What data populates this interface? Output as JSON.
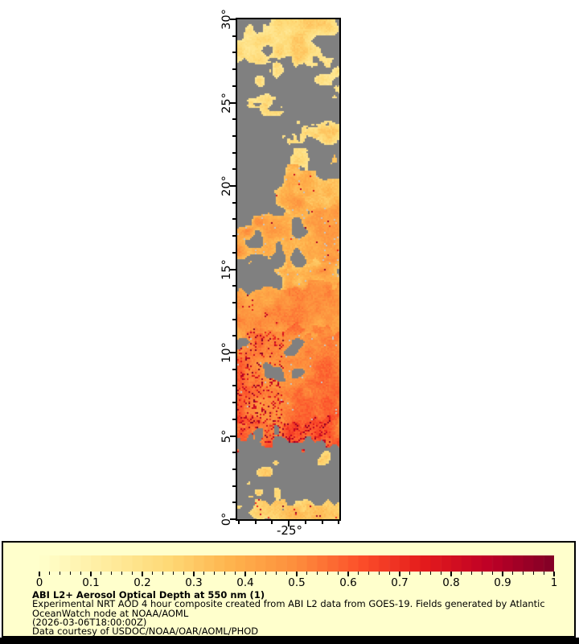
{
  "window": {
    "background": "#ffffff",
    "bottom_bar_color": "#000000"
  },
  "map": {
    "y_axis": {
      "tick_labels": [
        "0°",
        "5°",
        "10°",
        "15°",
        "20°",
        "25°",
        "30°"
      ],
      "lat_min": 0,
      "lat_max": 30,
      "major_step_deg": 5,
      "minor_step_deg": 1
    },
    "x_axis": {
      "tick_label": "-25°",
      "lon_min": -28.1,
      "lon_max": -21.9,
      "minor_step_deg": 1,
      "major_lon": -25
    },
    "nodata_color": "#808080",
    "cloud_color": "#c6c6c6",
    "frame_color": "#000000"
  },
  "colorbar": {
    "min": 0,
    "max": 1,
    "segments": 50,
    "major_step": 0.1,
    "minor_step": 0.02,
    "tick_labels": [
      "0",
      "0.1",
      "0.2",
      "0.3",
      "0.4",
      "0.5",
      "0.6",
      "0.7",
      "0.8",
      "0.9",
      "1"
    ],
    "colormap_name": "YlOrRd",
    "colormap_anchors": [
      "#ffffcc",
      "#ffeda0",
      "#fed976",
      "#feb24c",
      "#fd8d3c",
      "#fc4e2a",
      "#e31a1c",
      "#bd0026",
      "#800026"
    ]
  },
  "legend": {
    "background": "#ffffcc",
    "border_color": "#000000",
    "text_color": "#000000",
    "title": "ABI L2+ Aerosol Optical Depth at 550 nm (1)",
    "lines": [
      "Experimental NRT AOD 4 hour composite created from ABI L2 data from GOES-19. Fields generated by Atlantic",
      "OceanWatch node at NOAA/AOML",
      "(2026-03-06T18:00:00Z)",
      "Data courtesy of USDOC/NOAA/OAR/AOML/PHOD"
    ]
  },
  "chart_data": {
    "type": "heatmap",
    "title": "ABI L2+ Aerosol Optical Depth at 550 nm (1)",
    "variable": "Aerosol Optical Depth (AOD) at 550 nm",
    "source": "GOES-19 ABI L2, 4 hour NRT composite",
    "x_range_deg_lon": [
      -28.1,
      -21.9
    ],
    "y_range_deg_lat": [
      0,
      30
    ],
    "x_tick_labels_shown": [
      "-25°"
    ],
    "y_tick_labels_shown": [
      "0°",
      "5°",
      "10°",
      "15°",
      "20°",
      "25°",
      "30°"
    ],
    "colorbar_range": [
      0,
      1
    ],
    "colorbar_tick_labels": [
      "0",
      "0.1",
      "0.2",
      "0.3",
      "0.4",
      "0.5",
      "0.6",
      "0.7",
      "0.8",
      "0.9",
      "1"
    ],
    "colormap_anchors": [
      "#ffffcc",
      "#ffeda0",
      "#fed976",
      "#feb24c",
      "#fd8d3c",
      "#fc4e2a",
      "#e31a1c",
      "#bd0026",
      "#800026"
    ],
    "nodata_color": "#808080",
    "regions": [
      {
        "lat_range": [
          27.4,
          30.0
        ],
        "coverage_west_east": [
          0.52,
          0.45
        ],
        "aod_range": [
          0.12,
          0.3
        ],
        "red_speckle_prob": 0,
        "red_speckle_x_frac": 0,
        "cloud_prob": 0
      },
      {
        "lat_range": [
          25.9,
          27.4
        ],
        "coverage_west_east": [
          0.3,
          0.28
        ],
        "aod_range": [
          0.12,
          0.28
        ],
        "red_speckle_prob": 0,
        "red_speckle_x_frac": 0,
        "cloud_prob": 0
      },
      {
        "lat_range": [
          24.9,
          25.9
        ],
        "coverage_west_east": [
          0.32,
          0.26
        ],
        "aod_range": [
          0.14,
          0.28
        ],
        "red_speckle_prob": 0,
        "red_speckle_x_frac": 0,
        "cloud_prob": 0
      },
      {
        "lat_range": [
          23.2,
          24.9
        ],
        "coverage_west_east": [
          0.62,
          0.55
        ],
        "aod_range": [
          0.15,
          0.33
        ],
        "red_speckle_prob": 0,
        "red_speckle_x_frac": 0,
        "cloud_prob": 0
      },
      {
        "lat_range": [
          21.2,
          23.2
        ],
        "coverage_west_east": [
          0.38,
          0.3
        ],
        "aod_range": [
          0.15,
          0.3
        ],
        "red_speckle_prob": 0,
        "red_speckle_x_frac": 0,
        "cloud_prob": 0
      },
      {
        "lat_range": [
          18.8,
          21.2
        ],
        "coverage_west_east": [
          0.25,
          0.8
        ],
        "aod_range": [
          0.25,
          0.47
        ],
        "red_speckle_prob": 0.01,
        "red_speckle_x_frac": 1.0,
        "cloud_prob": 0.01
      },
      {
        "lat_range": [
          15.2,
          18.8
        ],
        "coverage_west_east": [
          0.22,
          0.92
        ],
        "aod_range": [
          0.3,
          0.5
        ],
        "red_speckle_prob": 0.01,
        "red_speckle_x_frac": 1.0,
        "cloud_prob": 0.02
      },
      {
        "lat_range": [
          14.0,
          15.2
        ],
        "coverage_west_east": [
          0.5,
          0.62
        ],
        "aod_range": [
          0.25,
          0.45
        ],
        "red_speckle_prob": 0,
        "red_speckle_x_frac": 0,
        "cloud_prob": 0.01
      },
      {
        "lat_range": [
          11.3,
          14.0
        ],
        "coverage_west_east": [
          0.68,
          0.85
        ],
        "aod_range": [
          0.35,
          0.52
        ],
        "red_speckle_prob": 0.02,
        "red_speckle_x_frac": 0.35,
        "cloud_prob": 0
      },
      {
        "lat_range": [
          5.9,
          11.3
        ],
        "coverage_west_east": [
          0.6,
          0.98
        ],
        "aod_range": [
          0.42,
          0.6
        ],
        "red_speckle_prob": 0.16,
        "red_speckle_x_frac": 0.45,
        "cloud_prob": 0.008
      },
      {
        "lat_range": [
          4.6,
          5.9
        ],
        "coverage_west_east": [
          0.75,
          0.85
        ],
        "aod_range": [
          0.45,
          0.68
        ],
        "red_speckle_prob": 0.22,
        "red_speckle_x_frac": 0.9,
        "cloud_prob": 0
      },
      {
        "lat_range": [
          2.1,
          4.6
        ],
        "coverage_west_east": [
          0.06,
          0.1
        ],
        "aod_range": [
          0.18,
          0.3
        ],
        "red_speckle_prob": 0,
        "red_speckle_x_frac": 0,
        "cloud_prob": 0
      },
      {
        "lat_range": [
          1.0,
          2.1
        ],
        "coverage_west_east": [
          0.15,
          0.3
        ],
        "aod_range": [
          0.18,
          0.32
        ],
        "red_speckle_prob": 0,
        "red_speckle_x_frac": 0,
        "cloud_prob": 0
      },
      {
        "lat_range": [
          0.0,
          1.0
        ],
        "coverage_west_east": [
          0.7,
          0.78
        ],
        "aod_range": [
          0.2,
          0.35
        ],
        "red_speckle_prob": 0.03,
        "red_speckle_x_frac": 1.0,
        "cloud_prob": 0
      }
    ]
  }
}
